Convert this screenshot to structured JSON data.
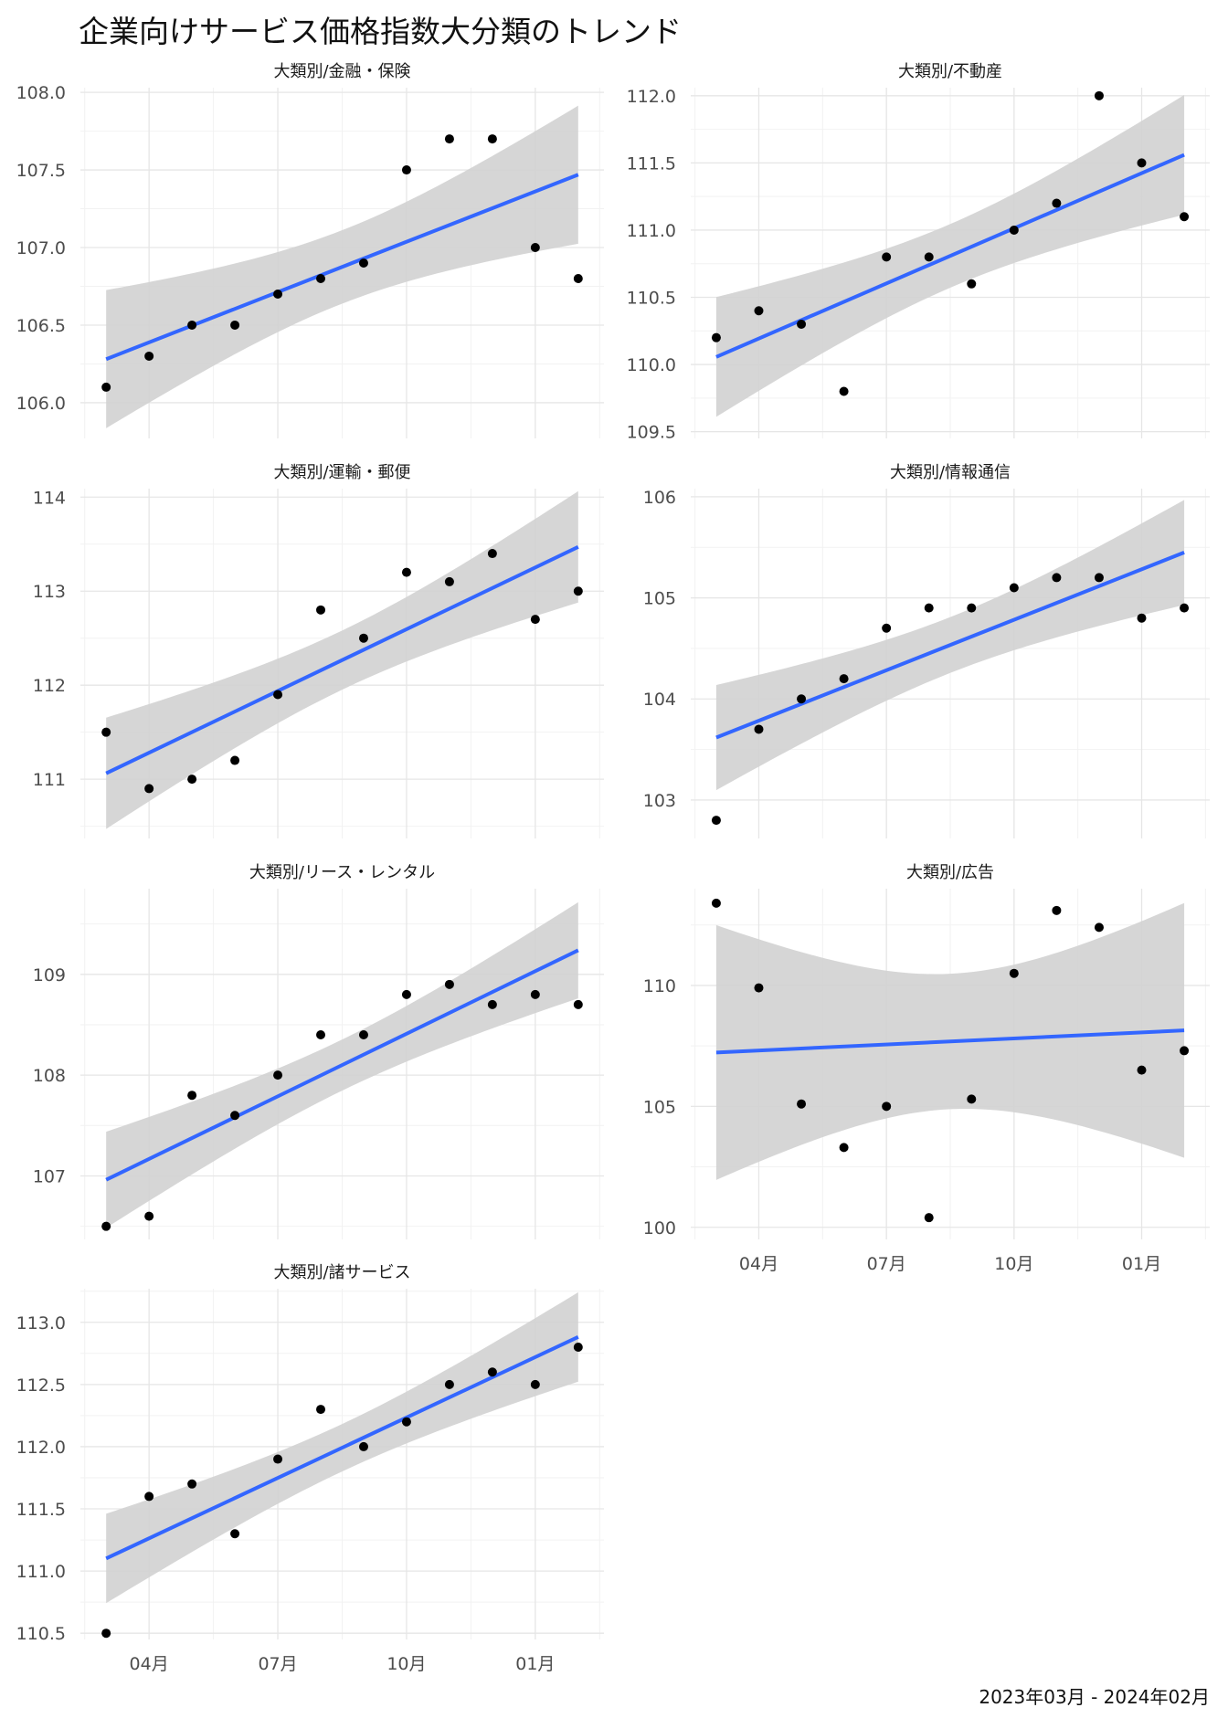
{
  "title": "企業向けサービス価格指数大分類のトレンド",
  "caption": "2023年03月 - 2024年02月",
  "colors": {
    "point": "#000000",
    "line": "#3366FF",
    "band": "#d2d2d2",
    "grid_major": "#e6e6e6",
    "grid_minor": "#f2f2f2"
  },
  "x_ticks": [
    "04月",
    "07月",
    "10月",
    "01月"
  ],
  "chart_data": [
    {
      "type": "scatter",
      "title": "大類別/金融・保険",
      "x": [
        "2023-03",
        "2023-04",
        "2023-05",
        "2023-06",
        "2023-07",
        "2023-08",
        "2023-09",
        "2023-10",
        "2023-11",
        "2023-12",
        "2024-01",
        "2024-02"
      ],
      "y": [
        106.1,
        106.3,
        106.5,
        106.5,
        106.7,
        106.8,
        106.9,
        107.5,
        107.7,
        107.7,
        107.0,
        106.8
      ],
      "y_ticks": [
        "106.0",
        "106.5",
        "107.0",
        "107.5",
        "108.0"
      ],
      "ylim": [
        105.77,
        108.03
      ],
      "trend": "linear",
      "ci_band": true
    },
    {
      "type": "scatter",
      "title": "大類別/不動産",
      "x": [
        "2023-03",
        "2023-04",
        "2023-05",
        "2023-06",
        "2023-07",
        "2023-08",
        "2023-09",
        "2023-10",
        "2023-11",
        "2023-12",
        "2024-01",
        "2024-02"
      ],
      "y": [
        110.2,
        110.4,
        110.3,
        109.8,
        110.8,
        110.8,
        110.6,
        111.0,
        111.2,
        112.0,
        111.5,
        111.1
      ],
      "y_ticks": [
        "109.5",
        "110.0",
        "110.5",
        "111.0",
        "111.5",
        "112.0"
      ],
      "ylim": [
        109.45,
        112.06
      ],
      "trend": "linear",
      "ci_band": true
    },
    {
      "type": "scatter",
      "title": "大類別/運輸・郵便",
      "x": [
        "2023-03",
        "2023-04",
        "2023-05",
        "2023-06",
        "2023-07",
        "2023-08",
        "2023-09",
        "2023-10",
        "2023-11",
        "2023-12",
        "2024-01",
        "2024-02"
      ],
      "y": [
        111.5,
        110.9,
        111.0,
        111.2,
        111.9,
        112.8,
        112.5,
        113.2,
        113.1,
        113.4,
        112.7,
        113.0
      ],
      "y_ticks": [
        "111",
        "112",
        "113",
        "114"
      ],
      "ylim": [
        110.37,
        114.09
      ],
      "trend": "linear",
      "ci_band": true
    },
    {
      "type": "scatter",
      "title": "大類別/情報通信",
      "x": [
        "2023-03",
        "2023-04",
        "2023-05",
        "2023-06",
        "2023-07",
        "2023-08",
        "2023-09",
        "2023-10",
        "2023-11",
        "2023-12",
        "2024-01",
        "2024-02"
      ],
      "y": [
        102.8,
        103.7,
        104.0,
        104.2,
        104.7,
        104.9,
        104.9,
        105.1,
        105.2,
        105.2,
        104.8,
        104.9
      ],
      "y_ticks": [
        "103",
        "104",
        "105",
        "106"
      ],
      "ylim": [
        102.62,
        106.08
      ],
      "trend": "linear",
      "ci_band": true
    },
    {
      "type": "scatter",
      "title": "大類別/リース・レンタル",
      "x": [
        "2023-03",
        "2023-04",
        "2023-05",
        "2023-06",
        "2023-07",
        "2023-08",
        "2023-09",
        "2023-10",
        "2023-11",
        "2023-12",
        "2024-01",
        "2024-02"
      ],
      "y": [
        106.5,
        106.6,
        107.8,
        107.6,
        108.0,
        108.4,
        108.4,
        108.8,
        108.9,
        108.7,
        108.8,
        108.7
      ],
      "y_ticks": [
        "107",
        "108",
        "109"
      ],
      "ylim": [
        106.37,
        109.85
      ],
      "trend": "linear",
      "ci_band": true
    },
    {
      "type": "scatter",
      "title": "大類別/広告",
      "x": [
        "2023-03",
        "2023-04",
        "2023-05",
        "2023-06",
        "2023-07",
        "2023-08",
        "2023-09",
        "2023-10",
        "2023-11",
        "2023-12",
        "2024-01",
        "2024-02"
      ],
      "y": [
        113.4,
        109.9,
        105.1,
        103.3,
        105.0,
        100.4,
        105.3,
        110.5,
        113.1,
        112.4,
        106.5,
        107.3
      ],
      "y_ticks": [
        "100",
        "105",
        "110"
      ],
      "ylim": [
        99.5,
        114.0
      ],
      "trend": "linear",
      "ci_band": true
    },
    {
      "type": "scatter",
      "title": "大類別/諸サービス",
      "x": [
        "2023-03",
        "2023-04",
        "2023-05",
        "2023-06",
        "2023-07",
        "2023-08",
        "2023-09",
        "2023-10",
        "2023-11",
        "2023-12",
        "2024-01",
        "2024-02"
      ],
      "y": [
        110.5,
        111.6,
        111.7,
        111.3,
        111.9,
        112.3,
        112.0,
        112.2,
        112.5,
        112.6,
        112.5,
        112.8
      ],
      "y_ticks": [
        "110.5",
        "111.0",
        "111.5",
        "112.0",
        "112.5",
        "113.0"
      ],
      "ylim": [
        110.45,
        113.27
      ],
      "trend": "linear",
      "ci_band": true
    }
  ]
}
